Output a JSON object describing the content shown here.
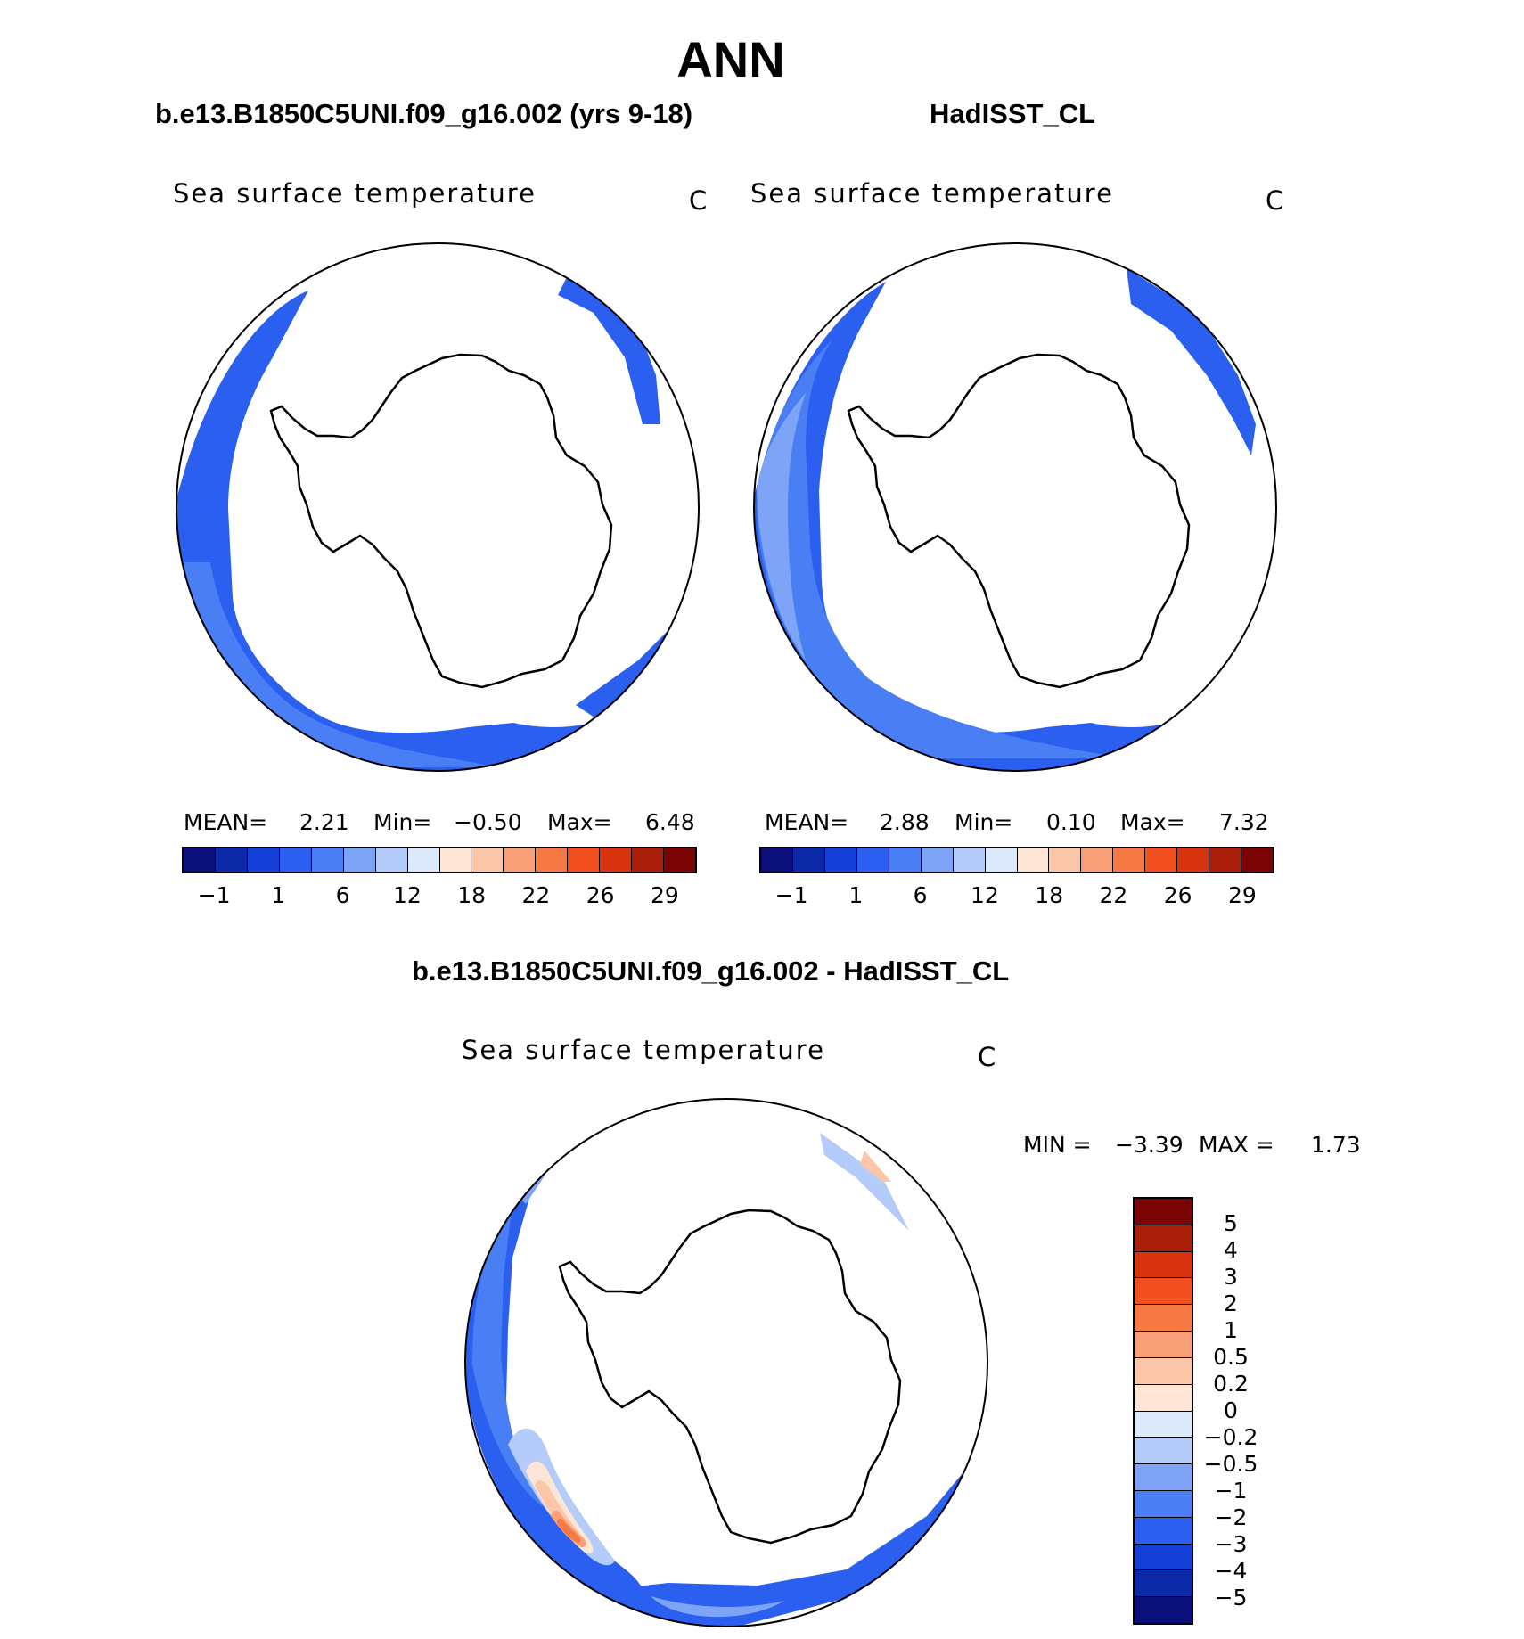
{
  "page_title": "ANN",
  "panels": [
    {
      "case_label": "b.e13.B1850C5UNI.f09_g16.002 (yrs 9-18)",
      "title": "Sea surface temperature",
      "units": "C",
      "stats": {
        "mean_label": "MEAN=",
        "mean": "2.21",
        "min_label": "Min=",
        "min": "−0.50",
        "max_label": "Max=",
        "max": "6.48"
      }
    },
    {
      "case_label": "HadISST_CL",
      "title": "Sea surface temperature",
      "units": "C",
      "stats": {
        "mean_label": "MEAN=",
        "mean": "2.88",
        "min_label": "Min=",
        "min": "0.10",
        "max_label": "Max=",
        "max": "7.32"
      }
    },
    {
      "case_label": "b.e13.B1850C5UNI.f09_g16.002 - HadISST_CL",
      "title": "Sea surface temperature",
      "units": "C",
      "stats": {
        "min_label": "MIN =",
        "min": "−3.39",
        "max_label": "MAX =",
        "max": "1.73"
      }
    }
  ],
  "abs_colorbar": {
    "colors": [
      "#0a0f7a",
      "#0c29a8",
      "#1540d8",
      "#2b5ff0",
      "#4a7ef5",
      "#7ea4f7",
      "#b4ccfa",
      "#dceafc",
      "#fde6d6",
      "#fbc7a8",
      "#f9a079",
      "#f77a45",
      "#f2511f",
      "#d8330f",
      "#a81e08",
      "#7a0404"
    ],
    "tick_labels": [
      "−1",
      "1",
      "6",
      "12",
      "18",
      "22",
      "26",
      "29"
    ]
  },
  "diff_colorbar": {
    "colors_top_to_bottom": [
      "#7a0404",
      "#a81e08",
      "#d8330f",
      "#f2511f",
      "#f77a45",
      "#f9a079",
      "#fbc7a8",
      "#fde6d6",
      "#dceafc",
      "#b4ccfa",
      "#7ea4f7",
      "#4a7ef5",
      "#2b5ff0",
      "#1540d8",
      "#0c29a8",
      "#0a0f7a"
    ],
    "tick_labels": [
      "5",
      "4",
      "3",
      "2",
      "1",
      "0.5",
      "0.2",
      "0",
      "−0.2",
      "−0.5",
      "−1",
      "−2",
      "−3",
      "−4",
      "−5"
    ]
  },
  "field_colors": {
    "deep": "#2b5ff0",
    "mid": "#4a7ef5",
    "light": "#7ea4f7",
    "pale": "#b4ccfa",
    "warm_pale": "#fde6d6",
    "warm": "#fbc7a8",
    "warm_mid": "#f9a079",
    "warm_strong": "#f77a45"
  }
}
